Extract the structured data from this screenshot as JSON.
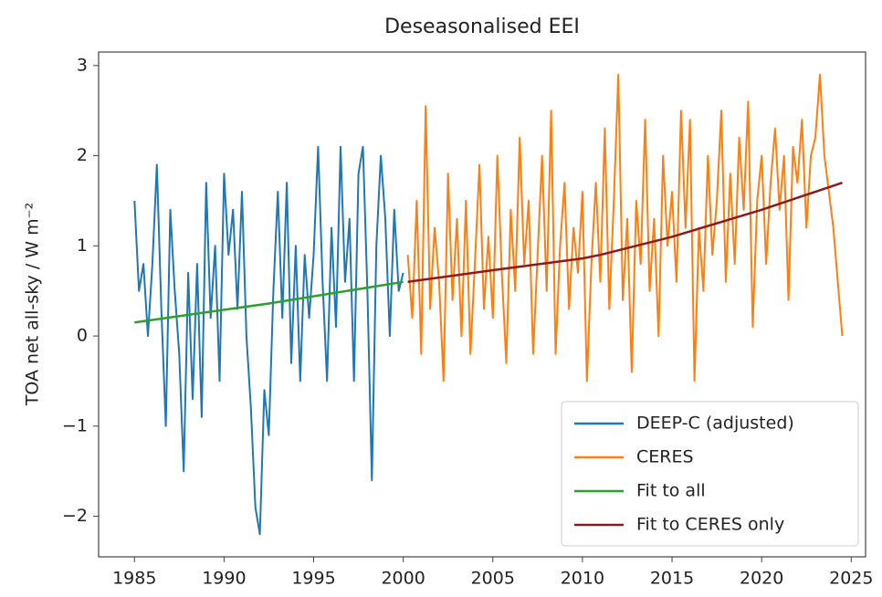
{
  "chart_data": {
    "type": "line",
    "title": "Deseasonalised EEI",
    "y_label": "TOA net all-sky / W m⁻²",
    "xlim": [
      1983.0,
      2025.8
    ],
    "ylim": [
      -2.45,
      3.15
    ],
    "xticks": [
      1985,
      1990,
      1995,
      2000,
      2005,
      2010,
      2015,
      2020,
      2025
    ],
    "yticks": [
      {
        "value": -2,
        "label": "−2"
      },
      {
        "value": -1,
        "label": "−1"
      },
      0,
      1,
      2,
      3
    ],
    "legend": "lower right",
    "series": [
      {
        "name": "DEEP-C (adjusted)",
        "color": "#1f77b4",
        "x": [
          1985.0,
          1985.25,
          1985.5,
          1985.75,
          1986.0,
          1986.25,
          1986.5,
          1986.75,
          1987.0,
          1987.25,
          1987.5,
          1987.75,
          1988.0,
          1988.25,
          1988.5,
          1988.75,
          1989.0,
          1989.25,
          1989.5,
          1989.75,
          1990.0,
          1990.25,
          1990.5,
          1990.75,
          1991.0,
          1991.25,
          1991.5,
          1991.75,
          1992.0,
          1992.25,
          1992.5,
          1992.75,
          1993.0,
          1993.25,
          1993.5,
          1993.75,
          1994.0,
          1994.25,
          1994.5,
          1994.75,
          1995.0,
          1995.25,
          1995.5,
          1995.75,
          1996.0,
          1996.25,
          1996.5,
          1996.75,
          1997.0,
          1997.25,
          1997.5,
          1997.75,
          1998.0,
          1998.25,
          1998.5,
          1998.75,
          1999.0,
          1999.25,
          1999.5,
          1999.75,
          2000.0
        ],
        "values": [
          1.5,
          0.5,
          0.8,
          0.0,
          0.8,
          1.9,
          0.3,
          -1.0,
          1.4,
          0.5,
          -0.2,
          -1.5,
          0.7,
          -0.7,
          0.8,
          -0.9,
          1.7,
          0.2,
          1.0,
          -0.5,
          1.8,
          0.9,
          1.4,
          0.3,
          1.6,
          0.0,
          -0.8,
          -1.9,
          -2.2,
          -0.6,
          -1.1,
          0.5,
          1.6,
          0.2,
          1.7,
          -0.3,
          1.0,
          -0.5,
          0.9,
          0.2,
          0.9,
          2.1,
          0.6,
          -0.5,
          1.2,
          0.1,
          2.1,
          0.6,
          1.3,
          -0.5,
          1.8,
          2.1,
          0.5,
          -1.6,
          1.0,
          2.0,
          1.3,
          0.0,
          1.4,
          0.5,
          0.7
        ]
      },
      {
        "name": "CERES",
        "color": "#ff7f0e",
        "x": [
          2000.25,
          2000.5,
          2000.75,
          2001.0,
          2001.25,
          2001.5,
          2001.75,
          2002.0,
          2002.25,
          2002.5,
          2002.75,
          2003.0,
          2003.25,
          2003.5,
          2003.75,
          2004.0,
          2004.25,
          2004.5,
          2004.75,
          2005.0,
          2005.25,
          2005.5,
          2005.75,
          2006.0,
          2006.25,
          2006.5,
          2006.75,
          2007.0,
          2007.25,
          2007.5,
          2007.75,
          2008.0,
          2008.25,
          2008.5,
          2008.75,
          2009.0,
          2009.25,
          2009.5,
          2009.75,
          2010.0,
          2010.25,
          2010.5,
          2010.75,
          2011.0,
          2011.25,
          2011.5,
          2011.75,
          2012.0,
          2012.25,
          2012.5,
          2012.75,
          2013.0,
          2013.25,
          2013.5,
          2013.75,
          2014.0,
          2014.25,
          2014.5,
          2014.75,
          2015.0,
          2015.25,
          2015.5,
          2015.75,
          2016.0,
          2016.25,
          2016.5,
          2016.75,
          2017.0,
          2017.25,
          2017.5,
          2017.75,
          2018.0,
          2018.25,
          2018.5,
          2018.75,
          2019.0,
          2019.25,
          2019.5,
          2019.75,
          2020.0,
          2020.25,
          2020.5,
          2020.75,
          2021.0,
          2021.25,
          2021.5,
          2021.75,
          2022.0,
          2022.25,
          2022.5,
          2022.75,
          2023.0,
          2023.25,
          2023.5,
          2023.75,
          2024.0,
          2024.25,
          2024.5
        ],
        "values": [
          0.9,
          0.2,
          1.5,
          -0.2,
          2.55,
          0.3,
          1.2,
          0.6,
          -0.5,
          1.8,
          0.4,
          1.3,
          0.0,
          1.5,
          -0.2,
          0.8,
          1.9,
          0.3,
          1.1,
          0.2,
          2.0,
          0.7,
          -0.3,
          1.4,
          0.5,
          2.2,
          0.8,
          1.5,
          -0.2,
          0.9,
          2.0,
          0.5,
          2.5,
          -0.2,
          1.0,
          1.7,
          0.3,
          1.2,
          0.7,
          1.6,
          -0.5,
          0.8,
          1.7,
          0.6,
          2.3,
          0.3,
          1.5,
          2.9,
          0.4,
          1.3,
          -0.4,
          1.5,
          0.8,
          2.4,
          0.5,
          1.3,
          0.0,
          2.0,
          1.0,
          1.6,
          0.6,
          2.5,
          1.2,
          2.4,
          -0.5,
          1.2,
          0.5,
          2.0,
          0.9,
          1.5,
          2.5,
          0.6,
          1.8,
          0.8,
          2.2,
          1.4,
          2.6,
          0.1,
          1.5,
          2.0,
          0.8,
          1.7,
          2.3,
          1.4,
          2.0,
          0.4,
          2.1,
          1.7,
          2.4,
          1.2,
          2.0,
          2.2,
          2.9,
          2.0,
          1.6,
          1.2,
          0.6,
          0.0
        ]
      },
      {
        "name": "Fit to all",
        "color": "#2ca02c",
        "x": [
          1985.0,
          1992.5,
          2000.0
        ],
        "values": [
          0.15,
          0.36,
          0.6
        ]
      },
      {
        "name": "Fit to CERES only",
        "color": "#8c1a1a",
        "x": [
          2000.25,
          2005.0,
          2010.0,
          2011.0,
          2015.0,
          2020.0,
          2024.5
        ],
        "values": [
          0.6,
          0.73,
          0.86,
          0.9,
          1.1,
          1.4,
          1.7
        ]
      }
    ]
  }
}
